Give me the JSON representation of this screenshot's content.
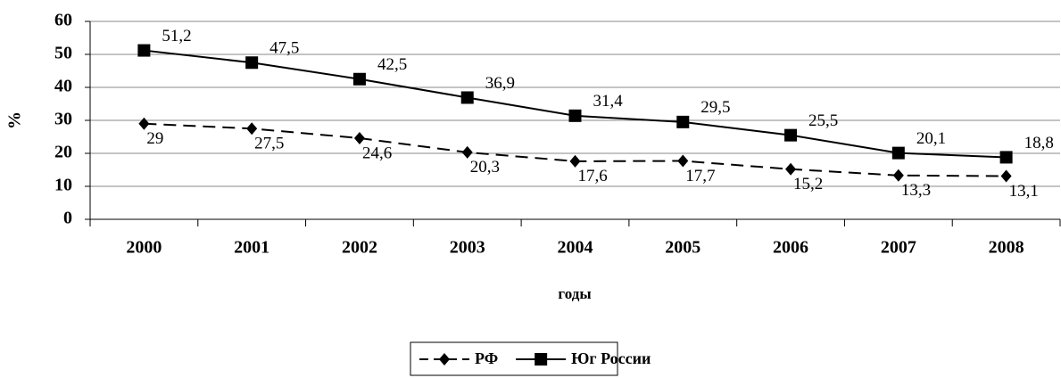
{
  "chart_data": {
    "type": "line",
    "x_label": "годы",
    "y_label": "%",
    "categories": [
      "2000",
      "2001",
      "2002",
      "2003",
      "2004",
      "2005",
      "2006",
      "2007",
      "2008"
    ],
    "series": [
      {
        "name": "РФ",
        "color": "#000000",
        "dashed": true,
        "marker": "diamond",
        "values": [
          29,
          27.5,
          24.6,
          20.3,
          17.6,
          17.7,
          15.2,
          13.3,
          13.1
        ],
        "value_labels": [
          "29",
          "27,5",
          "24,6",
          "20,3",
          "17,6",
          "17,7",
          "15,2",
          "13,3",
          "13,1"
        ]
      },
      {
        "name": "Юг России",
        "color": "#000000",
        "dashed": false,
        "marker": "square",
        "values": [
          51.2,
          47.5,
          42.5,
          36.9,
          31.4,
          29.5,
          25.5,
          20.1,
          18.8
        ],
        "value_labels": [
          "51,2",
          "47,5",
          "42,5",
          "36,9",
          "31,4",
          "29,5",
          "25,5",
          "20,1",
          "18,8"
        ]
      }
    ],
    "ylim": [
      0,
      60
    ],
    "yticks": [
      0,
      10,
      20,
      30,
      40,
      50,
      60
    ],
    "grid": true,
    "legend": "bottom"
  }
}
